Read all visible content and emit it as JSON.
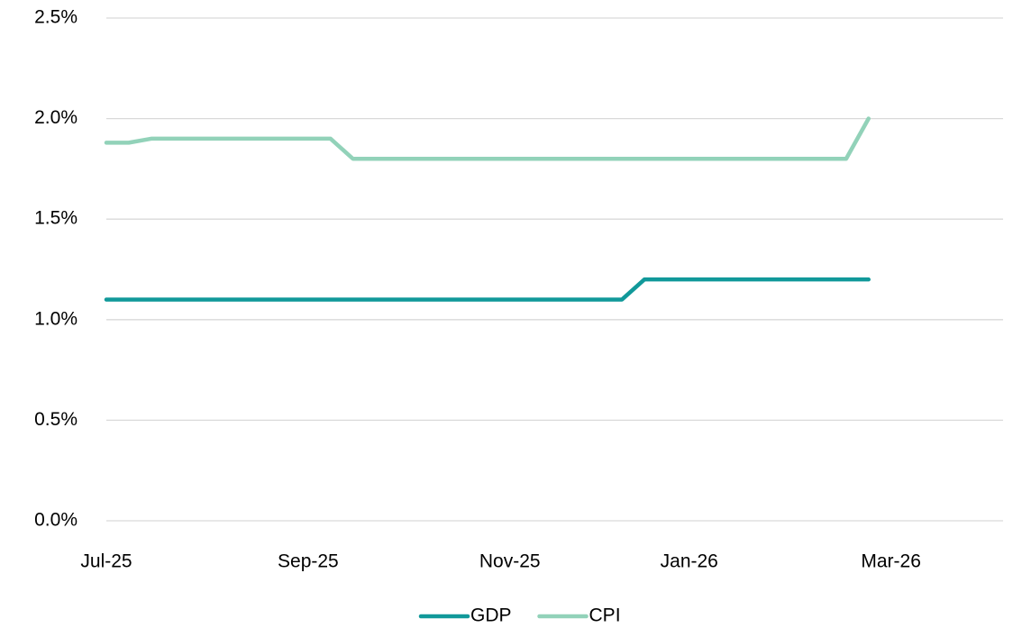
{
  "chart_data": {
    "type": "line",
    "categories": [
      "Jul-25",
      null,
      null,
      null,
      null,
      null,
      null,
      null,
      null,
      "Sep-25",
      null,
      null,
      null,
      null,
      null,
      null,
      null,
      null,
      "Nov-25",
      null,
      null,
      null,
      null,
      null,
      null,
      null,
      "Jan-26",
      null,
      null,
      null,
      null,
      null,
      null,
      null,
      null,
      "Mar-26",
      null,
      null,
      null,
      null,
      null
    ],
    "series": [
      {
        "name": "GDP",
        "color": "#11999a",
        "values": [
          1.1,
          1.1,
          1.1,
          1.1,
          1.1,
          1.1,
          1.1,
          1.1,
          1.1,
          1.1,
          1.1,
          1.1,
          1.1,
          1.1,
          1.1,
          1.1,
          1.1,
          1.1,
          1.1,
          1.1,
          1.1,
          1.1,
          1.1,
          1.1,
          1.2,
          1.2,
          1.2,
          1.2,
          1.2,
          1.2,
          1.2,
          1.2,
          1.2,
          1.2,
          1.2,
          null,
          null,
          null,
          null,
          null,
          null
        ]
      },
      {
        "name": "CPI",
        "color": "#92d2b9",
        "values": [
          1.88,
          1.88,
          1.9,
          1.9,
          1.9,
          1.9,
          1.9,
          1.9,
          1.9,
          1.9,
          1.9,
          1.8,
          1.8,
          1.8,
          1.8,
          1.8,
          1.8,
          1.8,
          1.8,
          1.8,
          1.8,
          1.8,
          1.8,
          1.8,
          1.8,
          1.8,
          1.8,
          1.8,
          1.8,
          1.8,
          1.8,
          1.8,
          1.8,
          1.8,
          2.0,
          null,
          null,
          null,
          null,
          null,
          null
        ]
      }
    ],
    "ylim": [
      0,
      2.5
    ],
    "yticks": [
      {
        "value": 0,
        "label": "0.0%"
      },
      {
        "value": 0.5,
        "label": "0.5%"
      },
      {
        "value": 1,
        "label": "1.0%"
      },
      {
        "value": 1.5,
        "label": "1.5%"
      },
      {
        "value": 2,
        "label": "2.0%"
      },
      {
        "value": 2.5,
        "label": "2.5%"
      }
    ],
    "grid": true,
    "legend": "bottom"
  }
}
